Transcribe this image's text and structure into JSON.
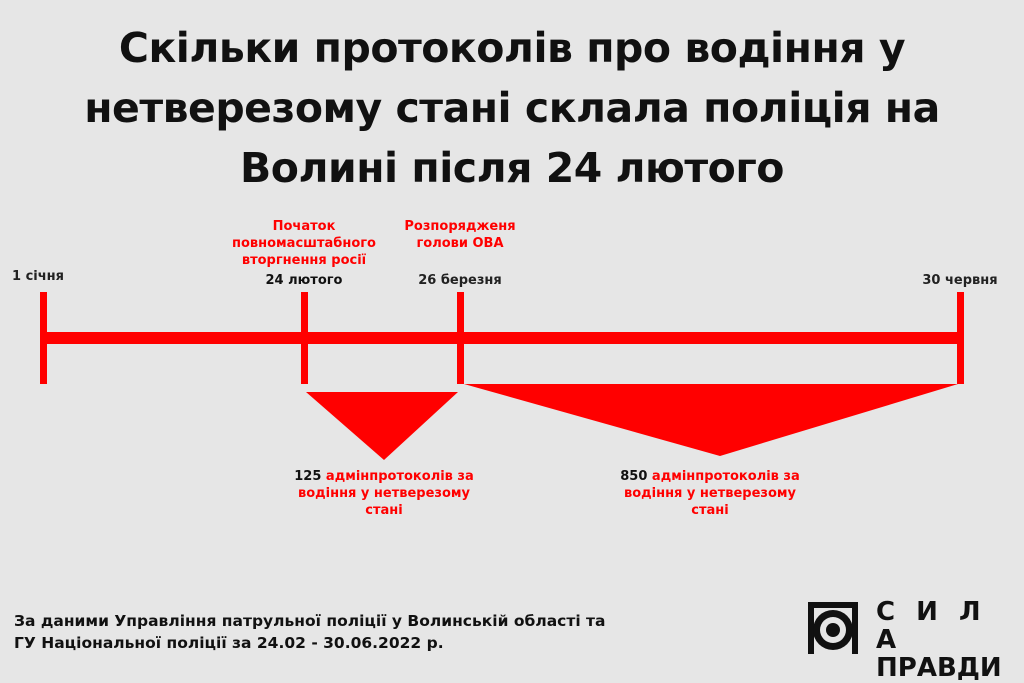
{
  "title": "Скільки протоколів про водіння у нетверезому стані склала поліція на Волині після 24 лютого",
  "timeline": {
    "color": "#ff0000",
    "points": [
      {
        "date": "1 січня"
      },
      {
        "date": "24 лютого",
        "event": [
          "Початок",
          "повномасштабного",
          "вторгнення росії"
        ]
      },
      {
        "date": "26 березня",
        "event": [
          "Розпорядженя",
          "голови ОВА"
        ]
      },
      {
        "date": "30 червня"
      }
    ],
    "periods": [
      {
        "count": "125",
        "text_1": " адмінпротоколів за",
        "text_2": "водіння у нетверезому",
        "text_3": "стані"
      },
      {
        "count": "850",
        "text_1": " адмінпротоколів за",
        "text_2": "водіння у нетверезому",
        "text_3": "стані"
      }
    ]
  },
  "footer": {
    "line1": "За даними Управління патрульної поліції у Волинській області та",
    "line2": "ГУ Національної поліції за 24.02 - 30.06.2022 р."
  },
  "logo": {
    "line1": "С И Л А",
    "line2": "ПРАВДИ"
  }
}
